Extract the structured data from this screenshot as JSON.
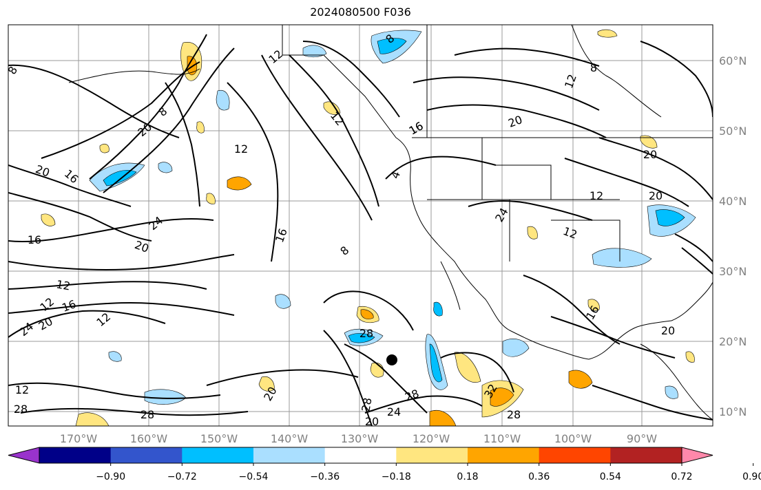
{
  "title": "2024080500 F036",
  "lon_labels": [
    "170°W",
    "160°W",
    "150°W",
    "140°W",
    "130°W",
    "120°W",
    "110°W",
    "100°W",
    "90°W"
  ],
  "lat_labels": [
    "60°N",
    "50°N",
    "40°N",
    "30°N",
    "20°N",
    "10°N"
  ],
  "colorbar": {
    "ticks": [
      "−0.90",
      "−0.72",
      "−0.54",
      "−0.36",
      "−0.18",
      "0.18",
      "0.36",
      "0.54",
      "0.72",
      "0.90"
    ],
    "colors": [
      "#9933cc",
      "#000088",
      "#3355cc",
      "#00bfff",
      "#aadfff",
      "#ffffff",
      "#ffe680",
      "#ffa500",
      "#ff4500",
      "#b22222",
      "#ff88aa"
    ]
  },
  "contour_labels": [
    "8",
    "8",
    "12",
    "12",
    "16",
    "20",
    "8",
    "20",
    "12",
    "12",
    "16",
    "20",
    "24",
    "20",
    "16",
    "12",
    "16",
    "12",
    "20",
    "24",
    "12",
    "16",
    "8",
    "4",
    "28",
    "28",
    "24",
    "28",
    "20",
    "32",
    "28",
    "24",
    "20",
    "16",
    "20",
    "20",
    "12",
    "12",
    "16",
    "12",
    "28",
    "28",
    "20",
    "8"
  ],
  "fill_colors": {
    "neg_light": "#aadfff",
    "neg_mid": "#00bfff",
    "pos_light": "#ffe680",
    "pos_mid": "#ffa500"
  },
  "marker": "storm-center"
}
